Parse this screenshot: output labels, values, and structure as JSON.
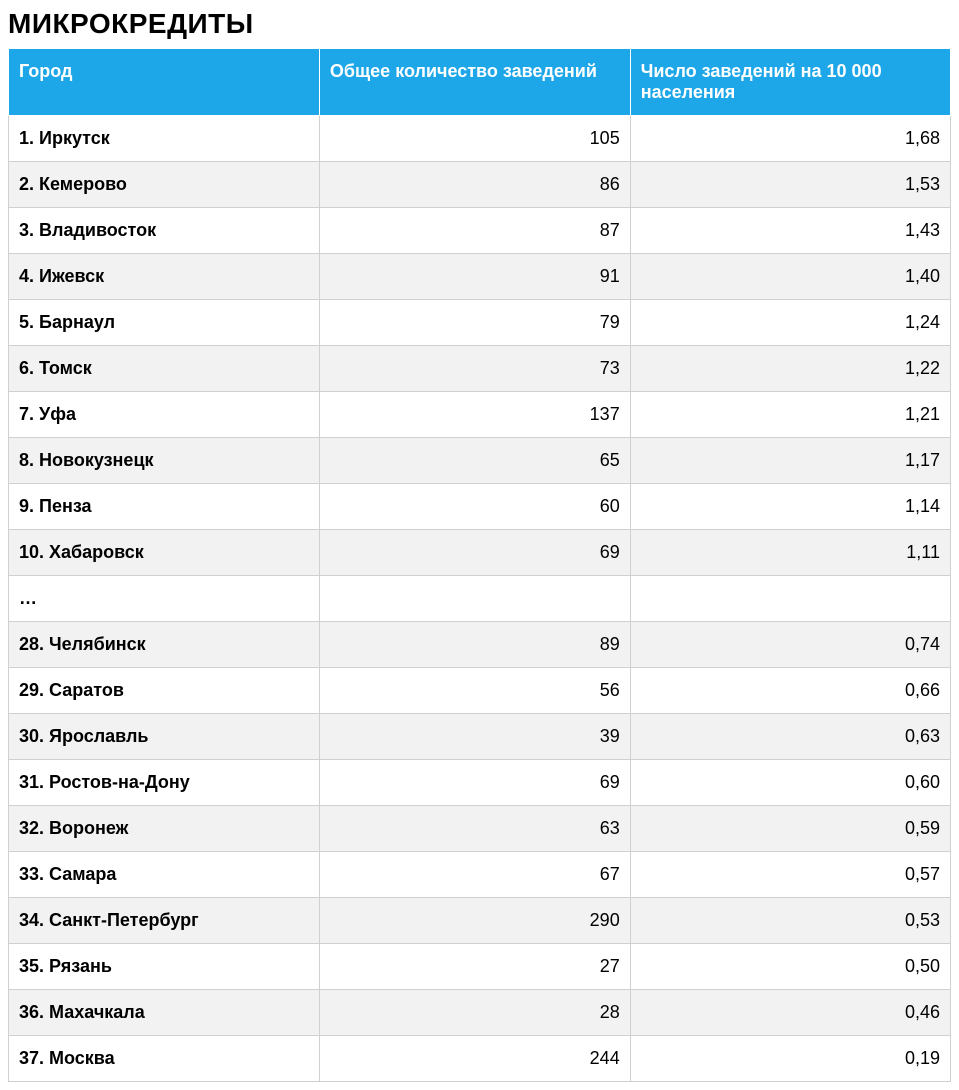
{
  "title": "МИКРОКРЕДИТЫ",
  "table": {
    "header_bg": "#1ea7e8",
    "header_color": "#ffffff",
    "row_odd_bg": "#ffffff",
    "row_even_bg": "#f2f2f2",
    "border_color": "#d0d0d0",
    "title_fontsize": 28,
    "header_fontsize": 18,
    "cell_fontsize": 18,
    "columns": [
      "Город",
      "Общее количество заведений",
      "Число заведений на 10 000 населения"
    ],
    "rows": [
      {
        "city": "1. Иркутск",
        "total": "105",
        "per10k": "1,68"
      },
      {
        "city": "2. Кемерово",
        "total": "86",
        "per10k": "1,53"
      },
      {
        "city": "3. Владивосток",
        "total": "87",
        "per10k": "1,43"
      },
      {
        "city": "4. Ижевск",
        "total": "91",
        "per10k": "1,40"
      },
      {
        "city": "5. Барнаул",
        "total": "79",
        "per10k": "1,24"
      },
      {
        "city": "6. Томск",
        "total": "73",
        "per10k": "1,22"
      },
      {
        "city": "7. Уфа",
        "total": "137",
        "per10k": "1,21"
      },
      {
        "city": "8. Новокузнецк",
        "total": "65",
        "per10k": "1,17"
      },
      {
        "city": "9. Пенза",
        "total": "60",
        "per10k": "1,14"
      },
      {
        "city": "10. Хабаровск",
        "total": "69",
        "per10k": "1,11"
      },
      {
        "city": "…",
        "total": "",
        "per10k": ""
      },
      {
        "city": "28. Челябинск",
        "total": "89",
        "per10k": "0,74"
      },
      {
        "city": "29. Саратов",
        "total": "56",
        "per10k": "0,66"
      },
      {
        "city": "30. Ярославль",
        "total": "39",
        "per10k": "0,63"
      },
      {
        "city": "31. Ростов-на-Дону",
        "total": "69",
        "per10k": "0,60"
      },
      {
        "city": "32. Воронеж",
        "total": "63",
        "per10k": "0,59"
      },
      {
        "city": "33. Самара",
        "total": "67",
        "per10k": "0,57"
      },
      {
        "city": "34. Санкт-Петербург",
        "total": "290",
        "per10k": "0,53"
      },
      {
        "city": "35. Рязань",
        "total": "27",
        "per10k": "0,50"
      },
      {
        "city": "36. Махачкала",
        "total": "28",
        "per10k": "0,46"
      },
      {
        "city": "37. Москва",
        "total": "244",
        "per10k": "0,19"
      }
    ]
  }
}
